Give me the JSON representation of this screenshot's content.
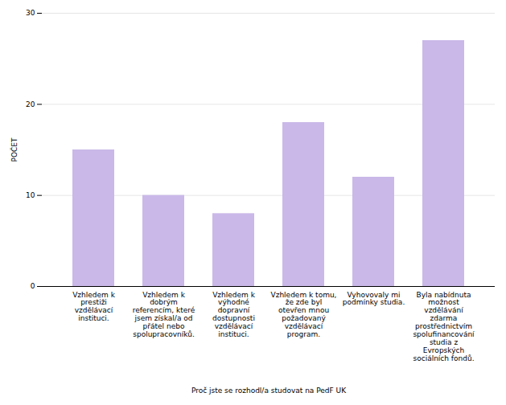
{
  "chart_data": {
    "type": "bar",
    "xlabel": "Proč jste se rozhodl/a studovat na PedF UK",
    "ylabel": "POČET",
    "categories": [
      "Vzhledem k\nprestiži\nvzdělávací\ninstituci.",
      "Vzhledem k\ndobrým\nreferencím, které\njsem získal/a od\npřátel nebo\nspolupracovníků.",
      "Vzhledem k\nvýhodné\ndopravní\ndostupnosti\nvzdělávací\ninstituci.",
      "Vzhledem k tomu,\nže zde byl\notevřen mnou\npožadovaný\nvzdělávací\nprogram.",
      "Vyhovovaly mi\npodmínky studia.",
      "Byla nabídnuta\nmožnost\nvzdělávání\nzdarma\nprostřednictvím\nspolufinancování\nstudia z\nEvropských\nsociálních fondů."
    ],
    "values": [
      15,
      10,
      8,
      18,
      12,
      27
    ],
    "color": "#c9b8e8",
    "ylim": [
      0,
      30
    ],
    "yticks": [
      0,
      10,
      20,
      30
    ],
    "grid": true
  }
}
